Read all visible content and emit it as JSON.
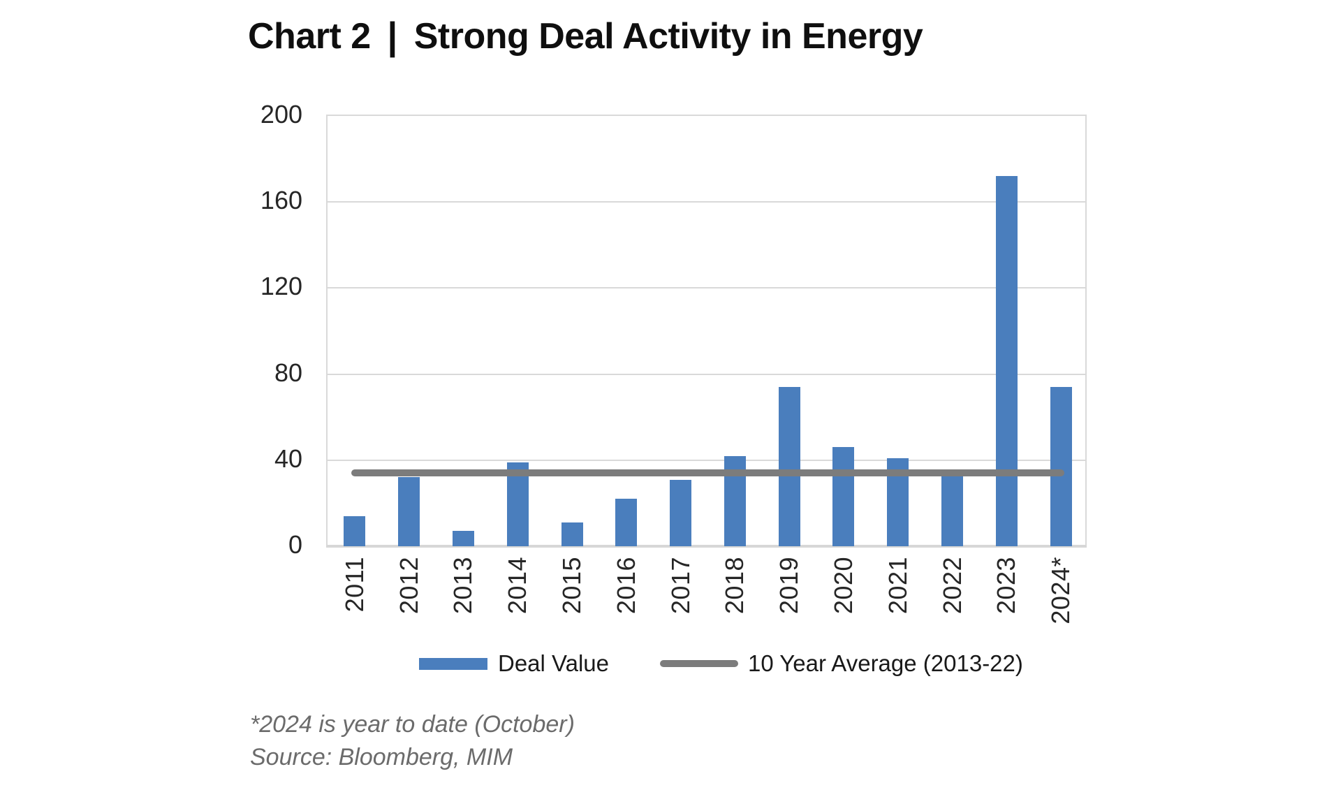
{
  "title": {
    "chart_label": "Chart 2",
    "separator": "|",
    "text": "Strong Deal Activity in Energy"
  },
  "chart_data": {
    "type": "bar",
    "title": "Chart 2 | Strong Deal Activity in Energy",
    "categories": [
      "2011",
      "2012",
      "2013",
      "2014",
      "2015",
      "2016",
      "2017",
      "2018",
      "2019",
      "2020",
      "2021",
      "2022",
      "2023",
      "2024*"
    ],
    "series": [
      {
        "name": "Deal Value",
        "type": "bar",
        "color": "#4A7EBD",
        "values": [
          14,
          32,
          7,
          39,
          11,
          22,
          31,
          42,
          74,
          46,
          41,
          33,
          172,
          74
        ]
      },
      {
        "name": "10 Year Average (2013-22)",
        "type": "line",
        "color": "#7C7C7C",
        "value": 34
      }
    ],
    "xlabel": "",
    "ylabel": "",
    "ylim": [
      0,
      200
    ],
    "yticks": [
      0,
      40,
      80,
      120,
      160,
      200
    ],
    "grid": true,
    "legend_position": "bottom",
    "x_tick_rotation": 90
  },
  "legend": {
    "deal_value_label": "Deal Value",
    "average_label": "10 Year Average (2013-22)"
  },
  "footnotes": {
    "line1": "*2024 is year to date (October)",
    "line2": "Source: Bloomberg, MIM"
  },
  "colors": {
    "bar": "#4A7EBD",
    "average_line": "#7C7C7C",
    "gridline": "#D9D9D9",
    "axis_text": "#262626",
    "title_text": "#0F0F0F",
    "footnote_text": "#6B6B6B",
    "background": "#FFFFFF"
  }
}
